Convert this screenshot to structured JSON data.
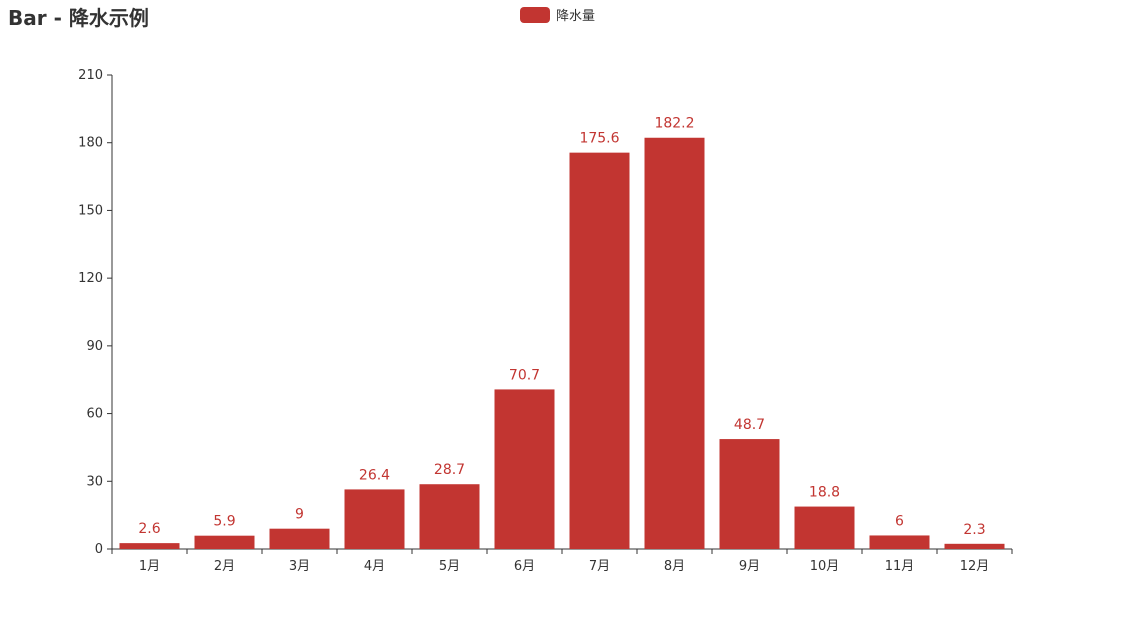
{
  "chart_data": {
    "type": "bar",
    "title": "Bar - 降水示例",
    "categories": [
      "1月",
      "2月",
      "3月",
      "4月",
      "5月",
      "6月",
      "7月",
      "8月",
      "9月",
      "10月",
      "11月",
      "12月"
    ],
    "series": [
      {
        "name": "降水量",
        "values": [
          2.6,
          5.9,
          9,
          26.4,
          28.7,
          70.7,
          175.6,
          182.2,
          48.7,
          18.8,
          6,
          2.3
        ]
      }
    ],
    "data_labels": [
      "2.6",
      "5.9",
      "9",
      "26.4",
      "28.7",
      "70.7",
      "175.6",
      "182.2",
      "48.7",
      "18.8",
      "6",
      "2.3"
    ],
    "yticks": [
      "0",
      "30",
      "60",
      "90",
      "120",
      "150",
      "180",
      "210"
    ],
    "ylim": [
      0,
      210
    ],
    "xlabel": "",
    "ylabel": "",
    "grid": false,
    "legend_position": "top-center",
    "colors": {
      "bar": "#c23531",
      "axis": "#333333",
      "text": "#333333"
    }
  }
}
